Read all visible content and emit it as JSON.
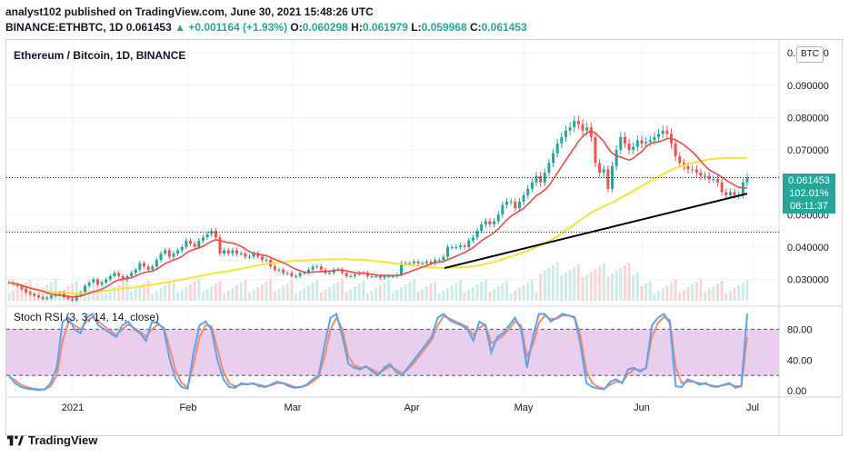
{
  "header": {
    "line1": "analyst102 published on TradingView.com, June 30, 2021 15:48:26 UTC",
    "symbol": "BINANCE:ETHBTC, 1D",
    "last": "0.061453",
    "change": "▲ +0.001164 (+1.93%)",
    "o_label": "O:",
    "o_value": "0.060298",
    "h_label": "H:",
    "h_value": "0.061979",
    "l_label": "L:",
    "l_value": "0.059968",
    "c_label": "C:",
    "c_value": "0.061453"
  },
  "chart": {
    "title": "Ethereum / Bitcoin, 1D, BINANCE",
    "currency_button": "BTC",
    "price_tag": {
      "price": "0.061453",
      "percent": "102.01%",
      "countdown": "08:11:37"
    },
    "stoch_title": "Stoch RSI (3, 3, 14, 14, close)",
    "logo_text": "TradingView"
  },
  "chart_data": [
    {
      "type": "candlestick",
      "title": "Ethereum / Bitcoin, 1D, BINANCE",
      "xlabel": "",
      "ylabel": "",
      "x_ticks": [
        "2021",
        "Feb",
        "Mar",
        "Apr",
        "May",
        "Jun",
        "Jul"
      ],
      "y_ticks": [
        "0.100000",
        "0.090000",
        "0.080000",
        "0.070000",
        "0.050000",
        "0.040000",
        "0.030000"
      ],
      "ylim": [
        0.022,
        0.104
      ],
      "grid": true,
      "close_approx": [
        0.029,
        0.0285,
        0.028,
        0.027,
        0.026,
        0.0255,
        0.025,
        0.0245,
        0.024,
        0.0243,
        0.025,
        0.0255,
        0.026,
        0.0245,
        0.024,
        0.0235,
        0.025,
        0.026,
        0.028,
        0.029,
        0.03,
        0.0285,
        0.029,
        0.03,
        0.031,
        0.032,
        0.031,
        0.03,
        0.031,
        0.032,
        0.033,
        0.035,
        0.034,
        0.033,
        0.034,
        0.036,
        0.038,
        0.039,
        0.037,
        0.038,
        0.039,
        0.04,
        0.042,
        0.041,
        0.04,
        0.042,
        0.043,
        0.044,
        0.045,
        0.043,
        0.038,
        0.039,
        0.038,
        0.039,
        0.038,
        0.038,
        0.037,
        0.037,
        0.038,
        0.037,
        0.036,
        0.036,
        0.034,
        0.033,
        0.033,
        0.032,
        0.032,
        0.031,
        0.031,
        0.032,
        0.032,
        0.033,
        0.034,
        0.034,
        0.033,
        0.032,
        0.032,
        0.033,
        0.033,
        0.032,
        0.031,
        0.031,
        0.0315,
        0.032,
        0.032,
        0.031,
        0.031,
        0.031,
        0.0305,
        0.031,
        0.031,
        0.031,
        0.0315,
        0.035,
        0.035,
        0.035,
        0.0355,
        0.035,
        0.035,
        0.0355,
        0.035,
        0.036,
        0.036,
        0.037,
        0.04,
        0.04,
        0.04,
        0.0405,
        0.04,
        0.042,
        0.043,
        0.045,
        0.047,
        0.048,
        0.047,
        0.048,
        0.05,
        0.053,
        0.054,
        0.054,
        0.052,
        0.054,
        0.056,
        0.058,
        0.06,
        0.062,
        0.06,
        0.063,
        0.066,
        0.069,
        0.072,
        0.074,
        0.076,
        0.077,
        0.079,
        0.078,
        0.076,
        0.077,
        0.074,
        0.066,
        0.063,
        0.064,
        0.058,
        0.065,
        0.07,
        0.074,
        0.072,
        0.07,
        0.071,
        0.073,
        0.072,
        0.0725,
        0.073,
        0.074,
        0.075,
        0.076,
        0.075,
        0.072,
        0.068,
        0.066,
        0.065,
        0.064,
        0.064,
        0.063,
        0.062,
        0.062,
        0.061,
        0.061,
        0.06,
        0.057,
        0.056,
        0.057,
        0.056,
        0.056,
        0.06,
        0.0615
      ],
      "series": [
        {
          "name": "",
          "color": "#e84a4a",
          "note": "moving average (red)"
        },
        {
          "name": "",
          "color": "#f5e23a",
          "note": "moving average (yellow)"
        },
        {
          "name": "",
          "color": "#000000",
          "note": "trend line"
        }
      ],
      "colors": {
        "up": "#26a69a",
        "down": "#ef5350"
      }
    },
    {
      "type": "line",
      "title": "Stoch RSI (3, 3, 14, 14, close)",
      "y_ticks": [
        "80.00",
        "40.00",
        "0.00"
      ],
      "ylim": [
        -8,
        110
      ],
      "band": [
        20,
        80
      ],
      "band_color": "#e1bee7",
      "k_values": [
        20,
        10,
        5,
        3,
        2,
        1,
        2,
        10,
        30,
        90,
        95,
        80,
        75,
        95,
        100,
        85,
        80,
        75,
        70,
        85,
        90,
        80,
        75,
        65,
        90,
        88,
        80,
        40,
        15,
        5,
        3,
        50,
        85,
        90,
        80,
        40,
        15,
        5,
        4,
        10,
        8,
        10,
        6,
        5,
        8,
        12,
        10,
        6,
        4,
        5,
        8,
        15,
        20,
        60,
        95,
        100,
        70,
        35,
        30,
        28,
        32,
        25,
        20,
        30,
        35,
        25,
        20,
        30,
        40,
        50,
        60,
        70,
        95,
        100,
        92,
        88,
        85,
        80,
        65,
        90,
        85,
        50,
        70,
        75,
        85,
        95,
        80,
        30,
        70,
        100,
        100,
        90,
        95,
        100,
        98,
        95,
        60,
        10,
        5,
        3,
        2,
        12,
        15,
        10,
        28,
        30,
        25,
        30,
        85,
        95,
        100,
        88,
        6,
        5,
        15,
        12,
        8,
        10,
        6,
        5,
        8,
        10,
        4,
        6,
        100
      ],
      "d_values": [
        18,
        14,
        8,
        5,
        3,
        2,
        2,
        6,
        20,
        65,
        90,
        85,
        80,
        90,
        96,
        90,
        84,
        78,
        72,
        80,
        86,
        82,
        77,
        70,
        80,
        86,
        82,
        55,
        25,
        10,
        5,
        35,
        70,
        85,
        84,
        55,
        25,
        10,
        6,
        8,
        9,
        9,
        8,
        6,
        7,
        10,
        10,
        8,
        5,
        5,
        7,
        12,
        18,
        45,
        80,
        95,
        80,
        45,
        33,
        30,
        31,
        28,
        23,
        27,
        32,
        28,
        23,
        28,
        36,
        46,
        56,
        66,
        85,
        97,
        94,
        90,
        87,
        83,
        72,
        82,
        86,
        62,
        66,
        72,
        80,
        90,
        85,
        45,
        60,
        88,
        98,
        93,
        94,
        98,
        98,
        96,
        72,
        25,
        10,
        5,
        3,
        8,
        12,
        11,
        22,
        28,
        27,
        29,
        70,
        88,
        96,
        92,
        30,
        10,
        12,
        12,
        10,
        9,
        7,
        6,
        7,
        9,
        6,
        6,
        70
      ]
    }
  ]
}
